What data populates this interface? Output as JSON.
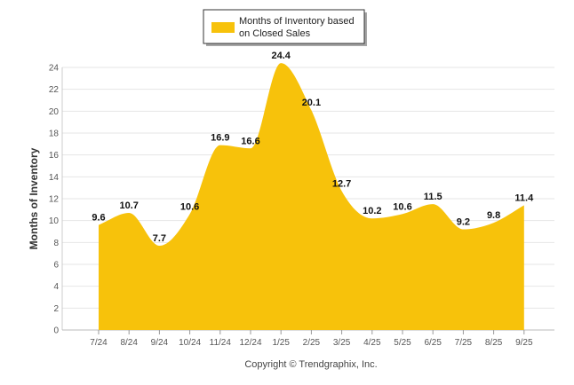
{
  "chart_data": {
    "type": "area",
    "title": "",
    "xlabel": "",
    "ylabel": "Months of Inventory",
    "categories": [
      "7/24",
      "8/24",
      "9/24",
      "10/24",
      "11/24",
      "12/24",
      "1/25",
      "2/25",
      "3/25",
      "4/25",
      "5/25",
      "6/25",
      "7/25",
      "8/25",
      "9/25"
    ],
    "series": [
      {
        "name": "Months of Inventory based on Closed Sales",
        "legend_lines": [
          "Months of Inventory based",
          "on Closed Sales"
        ],
        "values": [
          9.6,
          10.7,
          7.7,
          10.6,
          16.9,
          16.6,
          24.4,
          20.1,
          12.7,
          10.2,
          10.6,
          11.5,
          9.2,
          9.8,
          11.4
        ],
        "color": "#F7C20B"
      }
    ],
    "ylim": [
      0,
      24
    ],
    "yticks": [
      0,
      2,
      4,
      6,
      8,
      10,
      12,
      14,
      16,
      18,
      20,
      22,
      24
    ],
    "grid": true,
    "legend": "top-center",
    "footer": "Copyright © Trendgraphix, Inc."
  }
}
